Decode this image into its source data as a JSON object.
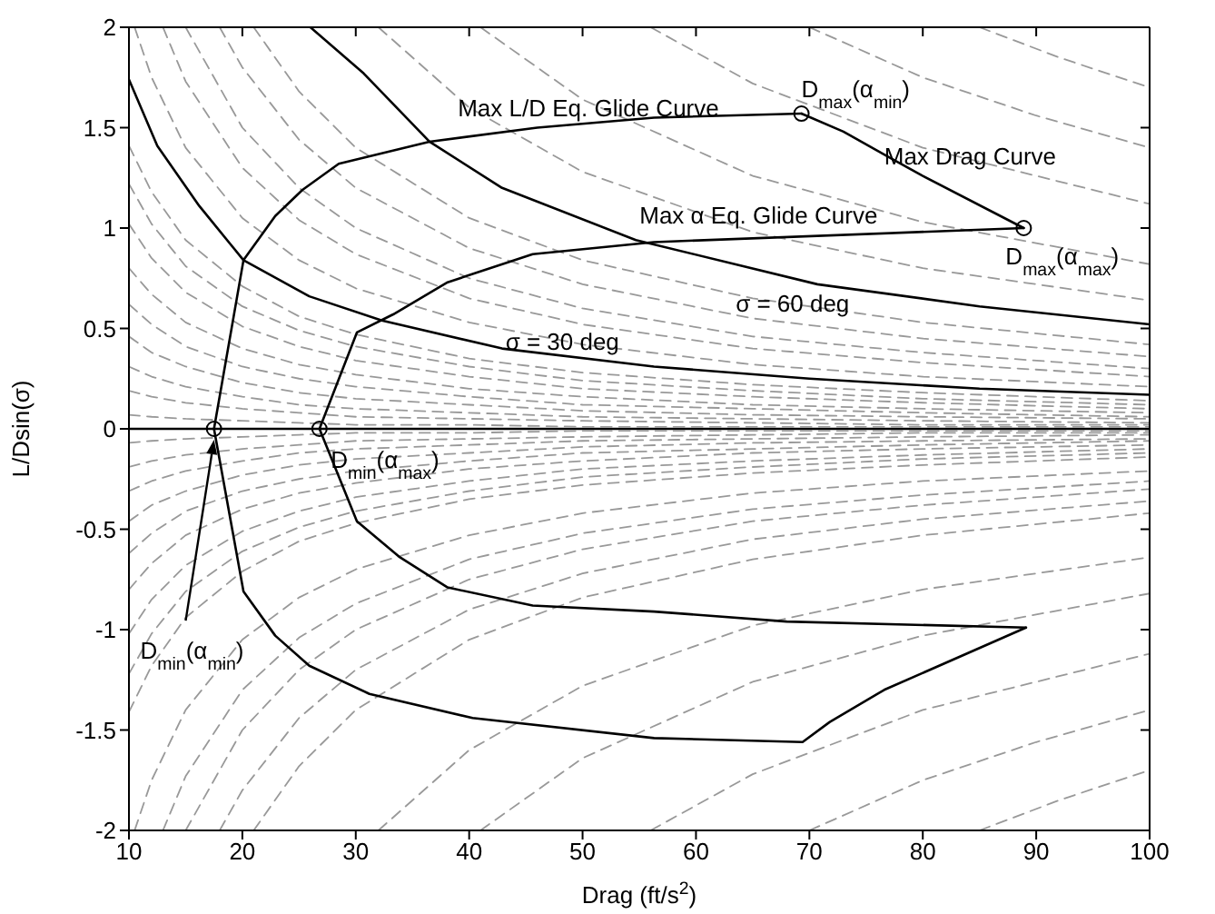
{
  "chart_data": {
    "type": "line",
    "xlabel": "Drag (ft/s$^{2}$)",
    "ylabel": "L/Dsin(σ)",
    "xlim": [
      10,
      100
    ],
    "xticks": [
      10,
      20,
      30,
      40,
      50,
      60,
      70,
      80,
      90,
      100
    ],
    "ylim": [
      -2,
      2
    ],
    "yticks": [
      -2,
      -1.5,
      -1,
      -0.5,
      0,
      0.5,
      1,
      1.5,
      2
    ],
    "marker": "none",
    "line_style": "solid",
    "ref_lines": [
      {
        "axis": "y",
        "value": 0,
        "color": "#000000"
      }
    ],
    "series": [
      {
        "color": "#999999",
        "line_style": "dashed",
        "x": [
          10,
          12,
          15,
          20,
          25,
          30,
          40,
          50,
          65,
          80,
          100
        ],
        "values": [
          0.07,
          0.06,
          0.05,
          0.04,
          0.03,
          0.02,
          0.02,
          0.01,
          0.01,
          0.01,
          0.01
        ]
      },
      {
        "color": "#999999",
        "line_style": "dashed",
        "x": [
          10,
          12,
          15,
          20,
          25,
          30,
          40,
          50,
          65,
          80,
          100
        ],
        "values": [
          0.19,
          0.16,
          0.13,
          0.1,
          0.08,
          0.06,
          0.05,
          0.04,
          0.03,
          0.02,
          0.02
        ]
      },
      {
        "color": "#999999",
        "line_style": "dashed",
        "x": [
          10,
          12,
          15,
          20,
          25,
          30,
          40,
          50,
          65,
          80,
          100
        ],
        "values": [
          0.31,
          0.26,
          0.21,
          0.16,
          0.12,
          0.1,
          0.08,
          0.06,
          0.05,
          0.04,
          0.03
        ]
      },
      {
        "color": "#999999",
        "line_style": "dashed",
        "x": [
          10,
          12,
          15,
          20,
          25,
          30,
          40,
          50,
          65,
          80,
          100
        ],
        "values": [
          0.46,
          0.38,
          0.31,
          0.23,
          0.18,
          0.15,
          0.12,
          0.09,
          0.07,
          0.06,
          0.05
        ]
      },
      {
        "color": "#999999",
        "line_style": "dashed",
        "x": [
          10,
          12,
          15,
          20,
          25,
          30,
          40,
          50,
          65,
          80,
          100
        ],
        "values": [
          0.62,
          0.52,
          0.41,
          0.31,
          0.25,
          0.21,
          0.16,
          0.12,
          0.1,
          0.08,
          0.06
        ]
      },
      {
        "color": "#999999",
        "line_style": "dashed",
        "x": [
          10,
          12,
          15,
          20,
          25,
          30,
          40,
          50,
          65,
          80,
          100
        ],
        "values": [
          0.8,
          0.67,
          0.53,
          0.4,
          0.32,
          0.27,
          0.2,
          0.16,
          0.12,
          0.1,
          0.08
        ]
      },
      {
        "color": "#999999",
        "line_style": "dashed",
        "x": [
          10,
          12,
          15,
          20,
          25,
          30,
          40,
          50,
          65,
          80,
          100
        ],
        "values": [
          1.02,
          0.85,
          0.68,
          0.51,
          0.41,
          0.34,
          0.26,
          0.2,
          0.16,
          0.13,
          0.1
        ]
      },
      {
        "color": "#999999",
        "line_style": "dashed",
        "x": [
          10,
          12,
          15,
          20,
          25,
          30,
          40,
          50,
          65,
          80,
          100
        ],
        "values": [
          1.22,
          1.02,
          0.81,
          0.61,
          0.49,
          0.41,
          0.31,
          0.24,
          0.19,
          0.15,
          0.12
        ]
      },
      {
        "color": "#999999",
        "line_style": "dashed",
        "x": [
          10,
          12,
          15,
          20,
          25,
          30,
          40,
          50,
          65,
          80,
          100
        ],
        "values": [
          1.41,
          1.18,
          0.94,
          0.71,
          0.56,
          0.47,
          0.35,
          0.28,
          0.22,
          0.18,
          0.14
        ]
      },
      {
        "color": "#999999",
        "line_style": "dashed",
        "x": [
          10.5,
          12,
          15,
          20,
          25,
          30,
          40,
          50,
          65,
          80,
          100
        ],
        "values": [
          2,
          1.75,
          1.4,
          1.05,
          0.84,
          0.7,
          0.53,
          0.42,
          0.32,
          0.26,
          0.21
        ]
      },
      {
        "color": "#999999",
        "line_style": "dashed",
        "x": [
          13,
          15,
          20,
          25,
          30,
          40,
          50,
          65,
          80,
          100
        ],
        "values": [
          2,
          1.73,
          1.3,
          1.04,
          0.87,
          0.65,
          0.52,
          0.4,
          0.33,
          0.26
        ]
      },
      {
        "color": "#999999",
        "line_style": "dashed",
        "x": [
          15,
          20,
          25,
          30,
          40,
          50,
          65,
          80,
          100
        ],
        "values": [
          2,
          1.5,
          1.2,
          1,
          0.75,
          0.6,
          0.46,
          0.38,
          0.3
        ]
      },
      {
        "color": "#999999",
        "line_style": "dashed",
        "x": [
          18,
          20,
          25,
          30,
          40,
          50,
          65,
          80,
          100
        ],
        "values": [
          2,
          1.8,
          1.44,
          1.2,
          0.9,
          0.72,
          0.55,
          0.45,
          0.36
        ]
      },
      {
        "color": "#999999",
        "line_style": "dashed",
        "x": [
          21,
          25,
          30,
          40,
          50,
          65,
          80,
          100
        ],
        "values": [
          2,
          1.68,
          1.4,
          1.05,
          0.84,
          0.65,
          0.53,
          0.42
        ]
      },
      {
        "color": "#999999",
        "line_style": "dashed",
        "x": [
          32,
          40,
          50,
          65,
          80,
          100
        ],
        "values": [
          2,
          1.6,
          1.28,
          0.98,
          0.8,
          0.64
        ]
      },
      {
        "color": "#999999",
        "line_style": "dashed",
        "x": [
          41,
          50,
          65,
          80,
          100
        ],
        "values": [
          2,
          1.64,
          1.26,
          1.03,
          0.82
        ]
      },
      {
        "color": "#999999",
        "line_style": "dashed",
        "x": [
          56,
          65,
          80,
          100
        ],
        "values": [
          2,
          1.72,
          1.4,
          1.12
        ]
      },
      {
        "color": "#999999",
        "line_style": "dashed",
        "x": [
          70,
          80,
          90,
          100
        ],
        "values": [
          2,
          1.75,
          1.56,
          1.4
        ]
      },
      {
        "color": "#999999",
        "line_style": "dashed",
        "x": [
          85,
          92,
          100
        ],
        "values": [
          2,
          1.85,
          1.7
        ]
      },
      {
        "color": "#999999",
        "line_style": "dashed",
        "x": [
          10,
          12,
          15,
          20,
          25,
          30,
          40,
          50,
          65,
          80,
          100
        ],
        "values": [
          -0.07,
          -0.06,
          -0.05,
          -0.04,
          -0.03,
          -0.02,
          -0.02,
          -0.01,
          -0.01,
          -0.01,
          -0.01
        ]
      },
      {
        "color": "#999999",
        "line_style": "dashed",
        "x": [
          10,
          12,
          15,
          20,
          25,
          30,
          40,
          50,
          65,
          80,
          100
        ],
        "values": [
          -0.19,
          -0.16,
          -0.13,
          -0.1,
          -0.08,
          -0.06,
          -0.05,
          -0.04,
          -0.03,
          -0.02,
          -0.02
        ]
      },
      {
        "color": "#999999",
        "line_style": "dashed",
        "x": [
          10,
          12,
          15,
          20,
          25,
          30,
          40,
          50,
          65,
          80,
          100
        ],
        "values": [
          -0.31,
          -0.26,
          -0.21,
          -0.16,
          -0.12,
          -0.1,
          -0.08,
          -0.06,
          -0.05,
          -0.04,
          -0.03
        ]
      },
      {
        "color": "#999999",
        "line_style": "dashed",
        "x": [
          10,
          12,
          15,
          20,
          25,
          30,
          40,
          50,
          65,
          80,
          100
        ],
        "values": [
          -0.46,
          -0.38,
          -0.31,
          -0.23,
          -0.18,
          -0.15,
          -0.12,
          -0.09,
          -0.07,
          -0.06,
          -0.05
        ]
      },
      {
        "color": "#999999",
        "line_style": "dashed",
        "x": [
          10,
          12,
          15,
          20,
          25,
          30,
          40,
          50,
          65,
          80,
          100
        ],
        "values": [
          -0.62,
          -0.52,
          -0.41,
          -0.31,
          -0.25,
          -0.21,
          -0.16,
          -0.12,
          -0.1,
          -0.08,
          -0.06
        ]
      },
      {
        "color": "#999999",
        "line_style": "dashed",
        "x": [
          10,
          12,
          15,
          20,
          25,
          30,
          40,
          50,
          65,
          80,
          100
        ],
        "values": [
          -0.8,
          -0.67,
          -0.53,
          -0.4,
          -0.32,
          -0.27,
          -0.2,
          -0.16,
          -0.12,
          -0.1,
          -0.08
        ]
      },
      {
        "color": "#999999",
        "line_style": "dashed",
        "x": [
          10,
          12,
          15,
          20,
          25,
          30,
          40,
          50,
          65,
          80,
          100
        ],
        "values": [
          -1.02,
          -0.85,
          -0.68,
          -0.51,
          -0.41,
          -0.34,
          -0.26,
          -0.2,
          -0.16,
          -0.13,
          -0.1
        ]
      },
      {
        "color": "#999999",
        "line_style": "dashed",
        "x": [
          10,
          12,
          15,
          20,
          25,
          30,
          40,
          50,
          65,
          80,
          100
        ],
        "values": [
          -1.22,
          -1.02,
          -0.81,
          -0.61,
          -0.49,
          -0.41,
          -0.31,
          -0.24,
          -0.19,
          -0.15,
          -0.12
        ]
      },
      {
        "color": "#999999",
        "line_style": "dashed",
        "x": [
          10,
          12,
          15,
          20,
          25,
          30,
          40,
          50,
          65,
          80,
          100
        ],
        "values": [
          -1.41,
          -1.18,
          -0.94,
          -0.71,
          -0.56,
          -0.47,
          -0.35,
          -0.28,
          -0.22,
          -0.18,
          -0.14
        ]
      },
      {
        "color": "#999999",
        "line_style": "dashed",
        "x": [
          10.5,
          12,
          15,
          20,
          25,
          30,
          40,
          50,
          65,
          80,
          100
        ],
        "values": [
          -2,
          -1.75,
          -1.4,
          -1.05,
          -0.84,
          -0.7,
          -0.53,
          -0.42,
          -0.32,
          -0.26,
          -0.21
        ]
      },
      {
        "color": "#999999",
        "line_style": "dashed",
        "x": [
          13,
          15,
          20,
          25,
          30,
          40,
          50,
          65,
          80,
          100
        ],
        "values": [
          -2,
          -1.73,
          -1.3,
          -1.04,
          -0.87,
          -0.65,
          -0.52,
          -0.4,
          -0.33,
          -0.26
        ]
      },
      {
        "color": "#999999",
        "line_style": "dashed",
        "x": [
          15,
          20,
          25,
          30,
          40,
          50,
          65,
          80,
          100
        ],
        "values": [
          -2,
          -1.5,
          -1.2,
          -1,
          -0.75,
          -0.6,
          -0.46,
          -0.38,
          -0.3
        ]
      },
      {
        "color": "#999999",
        "line_style": "dashed",
        "x": [
          18,
          20,
          25,
          30,
          40,
          50,
          65,
          80,
          100
        ],
        "values": [
          -2,
          -1.8,
          -1.44,
          -1.2,
          -0.9,
          -0.72,
          -0.55,
          -0.45,
          -0.36
        ]
      },
      {
        "color": "#999999",
        "line_style": "dashed",
        "x": [
          21,
          25,
          30,
          40,
          50,
          65,
          80,
          100
        ],
        "values": [
          -2,
          -1.68,
          -1.4,
          -1.05,
          -0.84,
          -0.65,
          -0.53,
          -0.42
        ]
      },
      {
        "color": "#999999",
        "line_style": "dashed",
        "x": [
          32,
          40,
          50,
          65,
          80,
          100
        ],
        "values": [
          -2,
          -1.6,
          -1.28,
          -0.98,
          -0.8,
          -0.64
        ]
      },
      {
        "color": "#999999",
        "line_style": "dashed",
        "x": [
          41,
          50,
          65,
          80,
          100
        ],
        "values": [
          -2,
          -1.64,
          -1.26,
          -1.03,
          -0.82
        ]
      },
      {
        "color": "#999999",
        "line_style": "dashed",
        "x": [
          56,
          65,
          80,
          100
        ],
        "values": [
          -2,
          -1.72,
          -1.4,
          -1.12
        ]
      },
      {
        "color": "#999999",
        "line_style": "dashed",
        "x": [
          70,
          80,
          90,
          100
        ],
        "values": [
          -2,
          -1.75,
          -1.56,
          -1.4
        ]
      },
      {
        "color": "#999999",
        "line_style": "dashed",
        "x": [
          85,
          92,
          100
        ],
        "values": [
          -2,
          -1.85,
          -1.7
        ]
      },
      {
        "color": "#000000",
        "x": [
          10,
          12.5,
          16.2,
          20.1,
          25.9,
          32.3,
          42.9,
          56.3,
          70,
          85,
          100
        ],
        "values": [
          1.74,
          1.41,
          1.11,
          0.84,
          0.66,
          0.54,
          0.4,
          0.31,
          0.25,
          0.2,
          0.17
        ]
      },
      {
        "color": "#000000",
        "x": [
          26,
          30.7,
          36.5,
          42.9,
          54.7,
          70.7,
          85,
          100
        ],
        "values": [
          2,
          1.77,
          1.43,
          1.2,
          0.94,
          0.72,
          0.61,
          0.52
        ]
      },
      {
        "color": "#000000",
        "x": [
          17.5,
          20.1,
          22.9,
          25.3,
          28.5,
          36.5,
          46,
          56.3,
          69.3
        ],
        "values": [
          0,
          0.84,
          1.06,
          1.19,
          1.32,
          1.43,
          1.5,
          1.55,
          1.57
        ]
      },
      {
        "color": "#000000",
        "x": [
          17.5,
          20.1,
          22.9,
          25.9,
          31.2,
          40.3,
          56.3,
          69.4,
          71.8,
          76.6,
          89.1
        ],
        "values": [
          0,
          -0.81,
          -1.03,
          -1.18,
          -1.32,
          -1.44,
          -1.54,
          -1.56,
          -1.46,
          -1.3,
          -0.99
        ]
      },
      {
        "color": "#000000",
        "x": [
          26.8,
          30.1,
          33.3,
          38.1,
          45.6,
          56.3,
          88.9
        ],
        "values": [
          0,
          0.48,
          0.57,
          0.73,
          0.87,
          0.93,
          1
        ]
      },
      {
        "color": "#000000",
        "x": [
          26.8,
          30.1,
          33.9,
          38.1,
          45.6,
          56.3,
          68,
          89.1
        ],
        "values": [
          0,
          -0.46,
          -0.64,
          -0.79,
          -0.88,
          -0.91,
          -0.96,
          -0.99
        ]
      },
      {
        "color": "#000000",
        "x": [
          69.3,
          73,
          77.1,
          80,
          88.9
        ],
        "values": [
          1.57,
          1.48,
          1.35,
          1.26,
          1
        ]
      },
      {
        "type": "scatter",
        "marker": "circle",
        "color": "#000000",
        "x": [
          17.5,
          26.8,
          69.3,
          88.9
        ],
        "values": [
          0,
          0,
          1.57,
          1
        ]
      }
    ],
    "annotations": [
      {
        "text": "Max L/D Eq. Glide Curve",
        "x": 39,
        "y": 1.6
      },
      {
        "text": "D$_{max}$(α$_{min}$)",
        "x": 69.3,
        "y": 1.57
      },
      {
        "text": "Max Drag Curve",
        "x": 76.6,
        "y": 1.36
      },
      {
        "text": "Max α Eq. Glide Curve",
        "x": 56.3,
        "y": 0.93
      },
      {
        "text": "D$_{max}$(α$_{max}$)",
        "x": 88.9,
        "y": 1
      },
      {
        "text": "σ = 60 deg",
        "x": 63.5,
        "y": 0.63
      },
      {
        "text": "σ = 30 deg",
        "x": 43.2,
        "y": 0.44
      },
      {
        "text": "D$_{min}$(α$_{max}$)",
        "x": 27.8,
        "y": -0.15
      },
      {
        "text": "D$_{min}$(α$_{min}$)",
        "x": 11,
        "y": -1.1
      }
    ]
  }
}
